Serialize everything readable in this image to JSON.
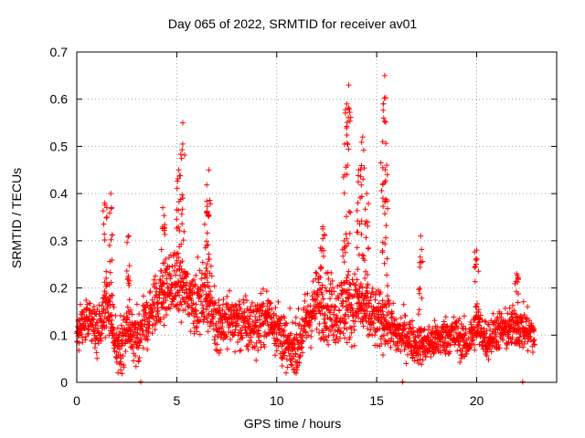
{
  "chart_data": {
    "type": "scatter",
    "title": "Day 065 of 2022, SRMTID for receiver av01",
    "xlabel": "GPS time / hours",
    "ylabel": "SRMTID / TECUs",
    "xlim": [
      0,
      24.0
    ],
    "ylim": [
      0,
      0.7
    ],
    "xticks": [
      0,
      5,
      10,
      15,
      20
    ],
    "yticks": [
      0,
      0.1,
      0.2,
      0.3,
      0.4,
      0.5,
      0.6,
      0.7
    ],
    "grid": true,
    "marker": "+",
    "series_color": "#ff0000",
    "x_range_of_points": [
      0.0,
      22.9
    ],
    "baseline_profile": [
      {
        "x": 0.0,
        "y": 0.09
      },
      {
        "x": 0.5,
        "y": 0.14
      },
      {
        "x": 1.0,
        "y": 0.1
      },
      {
        "x": 1.5,
        "y": 0.17
      },
      {
        "x": 2.0,
        "y": 0.07
      },
      {
        "x": 2.5,
        "y": 0.1
      },
      {
        "x": 3.0,
        "y": 0.1
      },
      {
        "x": 3.5,
        "y": 0.13
      },
      {
        "x": 4.0,
        "y": 0.17
      },
      {
        "x": 4.5,
        "y": 0.2
      },
      {
        "x": 5.0,
        "y": 0.21
      },
      {
        "x": 5.5,
        "y": 0.19
      },
      {
        "x": 6.0,
        "y": 0.17
      },
      {
        "x": 6.5,
        "y": 0.18
      },
      {
        "x": 7.0,
        "y": 0.13
      },
      {
        "x": 7.5,
        "y": 0.13
      },
      {
        "x": 8.0,
        "y": 0.13
      },
      {
        "x": 8.5,
        "y": 0.12
      },
      {
        "x": 9.0,
        "y": 0.12
      },
      {
        "x": 9.5,
        "y": 0.14
      },
      {
        "x": 10.0,
        "y": 0.12
      },
      {
        "x": 10.5,
        "y": 0.07
      },
      {
        "x": 11.0,
        "y": 0.07
      },
      {
        "x": 11.5,
        "y": 0.13
      },
      {
        "x": 12.0,
        "y": 0.17
      },
      {
        "x": 12.5,
        "y": 0.16
      },
      {
        "x": 13.0,
        "y": 0.15
      },
      {
        "x": 13.5,
        "y": 0.16
      },
      {
        "x": 14.0,
        "y": 0.17
      },
      {
        "x": 14.5,
        "y": 0.15
      },
      {
        "x": 15.0,
        "y": 0.13
      },
      {
        "x": 15.5,
        "y": 0.13
      },
      {
        "x": 16.0,
        "y": 0.1
      },
      {
        "x": 16.5,
        "y": 0.1
      },
      {
        "x": 17.0,
        "y": 0.08
      },
      {
        "x": 17.5,
        "y": 0.08
      },
      {
        "x": 18.0,
        "y": 0.09
      },
      {
        "x": 18.5,
        "y": 0.1
      },
      {
        "x": 19.0,
        "y": 0.1
      },
      {
        "x": 19.5,
        "y": 0.08
      },
      {
        "x": 20.0,
        "y": 0.12
      },
      {
        "x": 20.5,
        "y": 0.09
      },
      {
        "x": 21.0,
        "y": 0.11
      },
      {
        "x": 21.5,
        "y": 0.11
      },
      {
        "x": 22.0,
        "y": 0.12
      },
      {
        "x": 22.5,
        "y": 0.11
      },
      {
        "x": 22.9,
        "y": 0.1
      }
    ],
    "spread_profile": [
      {
        "x": 0.0,
        "y": 0.04
      },
      {
        "x": 5.0,
        "y": 0.06
      },
      {
        "x": 10.0,
        "y": 0.05
      },
      {
        "x": 13.5,
        "y": 0.07
      },
      {
        "x": 17.0,
        "y": 0.035
      },
      {
        "x": 22.9,
        "y": 0.04
      }
    ],
    "spikes": [
      {
        "x": 1.4,
        "y": 0.38
      },
      {
        "x": 1.7,
        "y": 0.4
      },
      {
        "x": 2.6,
        "y": 0.31
      },
      {
        "x": 4.3,
        "y": 0.37
      },
      {
        "x": 5.3,
        "y": 0.55
      },
      {
        "x": 5.1,
        "y": 0.45
      },
      {
        "x": 6.6,
        "y": 0.45
      },
      {
        "x": 6.5,
        "y": 0.36
      },
      {
        "x": 12.3,
        "y": 0.33
      },
      {
        "x": 13.6,
        "y": 0.63
      },
      {
        "x": 13.5,
        "y": 0.59
      },
      {
        "x": 13.4,
        "y": 0.44
      },
      {
        "x": 14.3,
        "y": 0.52
      },
      {
        "x": 14.1,
        "y": 0.45
      },
      {
        "x": 14.5,
        "y": 0.4
      },
      {
        "x": 15.4,
        "y": 0.65
      },
      {
        "x": 15.3,
        "y": 0.51
      },
      {
        "x": 15.5,
        "y": 0.46
      },
      {
        "x": 17.2,
        "y": 0.31
      },
      {
        "x": 20.0,
        "y": 0.28
      },
      {
        "x": 22.0,
        "y": 0.23
      }
    ],
    "zero_points_x": [
      3.2,
      16.3,
      22.3
    ]
  }
}
